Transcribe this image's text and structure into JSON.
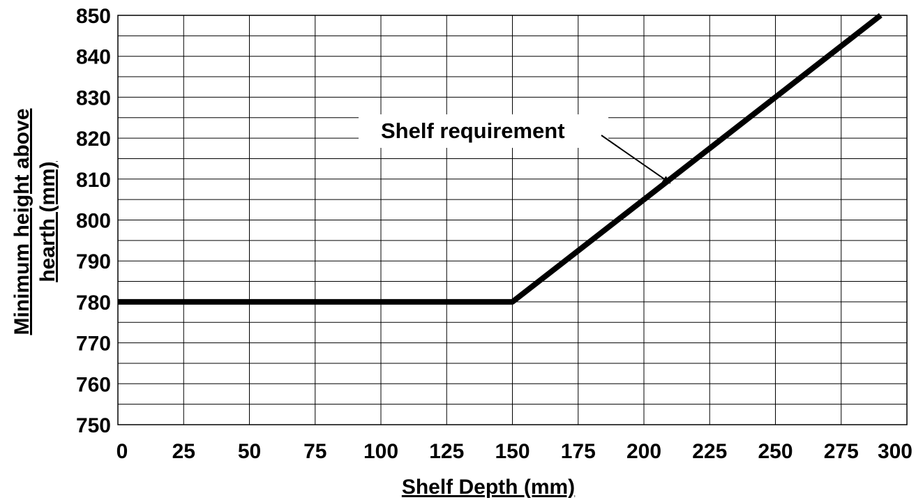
{
  "chart_data": {
    "type": "line",
    "title": "",
    "xlabel": "Shelf Depth (mm)",
    "ylabel_lines": [
      "Minimum height above",
      "hearth (mm)"
    ],
    "xlim": [
      0,
      300
    ],
    "ylim": [
      750,
      850
    ],
    "x_ticks": [
      0,
      25,
      50,
      75,
      100,
      125,
      150,
      175,
      200,
      225,
      250,
      275,
      300
    ],
    "y_ticks": [
      750,
      760,
      770,
      780,
      790,
      800,
      810,
      820,
      830,
      840,
      850
    ],
    "x_minor_step": 25,
    "y_minor_step": 5,
    "grid": true,
    "series": [
      {
        "x": [
          0,
          150,
          290
        ],
        "y": [
          780,
          780,
          850
        ],
        "color": "#000000"
      }
    ],
    "annotations": [
      {
        "text": "Shelf requirement",
        "arrow_to": {
          "x": 210,
          "y": 809
        }
      }
    ]
  }
}
